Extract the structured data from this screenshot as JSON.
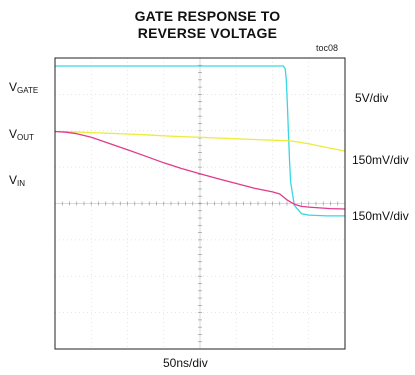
{
  "chart_data": {
    "type": "line",
    "title_lines": [
      "GATE RESPONSE TO",
      "REVERSE VOLTAGE"
    ],
    "tag": "toc08",
    "xlabel": "50ns/div",
    "grid": {
      "x_divisions": 8,
      "y_divisions": 8,
      "x_range_div": [
        0,
        8
      ],
      "y_range_div": [
        0,
        8
      ]
    },
    "channel_labels": [
      {
        "name": "V",
        "sub": "GATE"
      },
      {
        "name": "V",
        "sub": "OUT"
      },
      {
        "name": "V",
        "sub": "IN"
      }
    ],
    "scales": [
      "5V/div",
      "150mV/div",
      "150mV/div"
    ],
    "series": [
      {
        "name": "VGATE",
        "color": "#3ad6e3",
        "x": [
          0,
          1,
          2,
          3,
          4,
          5,
          6,
          6.3,
          6.35,
          6.38,
          6.41,
          6.44,
          6.47,
          6.5,
          6.6,
          6.8,
          7.0,
          7.5,
          8.0
        ],
        "y": [
          7.78,
          7.78,
          7.78,
          7.78,
          7.78,
          7.78,
          7.78,
          7.78,
          7.7,
          7.4,
          6.7,
          5.9,
          5.2,
          4.6,
          3.95,
          3.72,
          3.68,
          3.66,
          3.66
        ]
      },
      {
        "name": "VOUT",
        "color": "#ecec3c",
        "x": [
          0,
          0.5,
          1,
          1.5,
          2,
          2.5,
          3,
          3.5,
          4,
          4.5,
          5,
          5.5,
          6,
          6.5,
          7,
          7.5,
          8
        ],
        "y": [
          5.98,
          5.97,
          5.95,
          5.93,
          5.91,
          5.89,
          5.86,
          5.84,
          5.82,
          5.8,
          5.78,
          5.76,
          5.74,
          5.72,
          5.64,
          5.54,
          5.44
        ]
      },
      {
        "name": "VIN",
        "color": "#e23a8a",
        "x": [
          0,
          0.3,
          0.6,
          1.0,
          1.5,
          2.0,
          2.5,
          3.0,
          3.5,
          4.0,
          4.5,
          5.0,
          5.5,
          6.0,
          6.2,
          6.4,
          6.6,
          6.8,
          7.0,
          7.3,
          7.6,
          8.0
        ],
        "y": [
          5.98,
          5.96,
          5.92,
          5.82,
          5.65,
          5.48,
          5.3,
          5.12,
          4.96,
          4.82,
          4.68,
          4.55,
          4.42,
          4.32,
          4.26,
          4.1,
          3.98,
          3.92,
          3.9,
          3.88,
          3.86,
          3.85
        ]
      }
    ]
  }
}
